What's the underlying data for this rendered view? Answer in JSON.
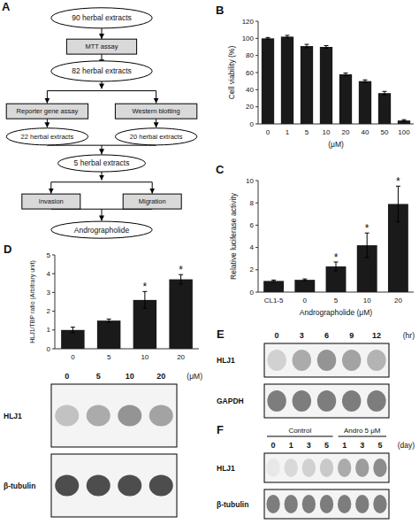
{
  "chart_data": [
    {
      "type": "flowchart",
      "title": "A",
      "annotations": [
        "90 herbal extracts",
        "MTT assay",
        "82 herbal extracts",
        "Reporter gene assay",
        "Western blotting",
        "22 herbal extracts",
        "20 herbal extracts",
        "5 herbal extracts",
        "Invasion",
        "Migration",
        "Andrographolide"
      ]
    },
    {
      "type": "bar",
      "title": "B",
      "categories": [
        "0",
        "1",
        "5",
        "10",
        "20",
        "40",
        "50",
        "100"
      ],
      "values": [
        100,
        102,
        91,
        90,
        58,
        50,
        36,
        4
      ],
      "errors": [
        1,
        1.5,
        2,
        1.5,
        1.5,
        1.5,
        2,
        1
      ],
      "ylabel": "Cell viability (%)",
      "xlabel": "(μM)",
      "ylim": [
        0,
        120
      ],
      "yticks": [
        0,
        20,
        40,
        60,
        80,
        100,
        120
      ],
      "color": "#1a1a1a"
    },
    {
      "type": "bar",
      "title": "C",
      "categories": [
        "CL1-5",
        "0",
        "5",
        "10",
        "20"
      ],
      "values": [
        1.0,
        1.1,
        2.3,
        4.2,
        7.9
      ],
      "errors": [
        0.08,
        0.08,
        0.4,
        1.1,
        1.6
      ],
      "annotations": [
        null,
        null,
        "*",
        "*",
        "*"
      ],
      "ylabel": "Relative luciferase activity",
      "xlabel": "Andrographolide (μM)",
      "ylim": [
        0,
        10
      ],
      "yticks": [
        0,
        2,
        4,
        6,
        8,
        10
      ],
      "color": "#1a1a1a"
    },
    {
      "type": "bar",
      "title": "D",
      "categories": [
        "0",
        "5",
        "10",
        "20"
      ],
      "values": [
        1.0,
        1.5,
        2.6,
        3.7
      ],
      "errors": [
        0.15,
        0.08,
        0.45,
        0.25
      ],
      "annotations": [
        null,
        null,
        "*",
        "*"
      ],
      "ylabel": "HLJ1/TBP ratio (Arbitrary unit)",
      "ylim": [
        0,
        5
      ],
      "yticks": [
        0,
        1,
        2,
        3,
        4,
        5
      ],
      "color": "#1a1a1a"
    },
    {
      "type": "blot",
      "lanes": [
        "0",
        "5",
        "10",
        "20"
      ],
      "unit": "(μM)",
      "rows": [
        {
          "name": "HLJ1",
          "values": [
            0.4,
            0.55,
            0.7,
            0.6
          ]
        },
        {
          "name": "β-tubulin"
        }
      ]
    },
    {
      "type": "blot",
      "title": "E",
      "lanes": [
        "0",
        "3",
        "6",
        "9",
        "12"
      ],
      "unit": "(hr)",
      "rows": [
        {
          "name": "HLJ1",
          "values": [
            0.3,
            0.55,
            0.7,
            0.6,
            0.5
          ]
        },
        {
          "name": "GAPDH",
          "values": [
            0.85,
            0.85,
            0.85,
            0.85,
            0.85
          ]
        }
      ]
    },
    {
      "type": "blot",
      "title": "F",
      "groups": [
        {
          "name": "Control",
          "lanes": [
            "0",
            "1",
            "3",
            "5"
          ]
        },
        {
          "name": "Andro 5 μM",
          "lanes": [
            "1",
            "3",
            "5"
          ]
        }
      ],
      "unit": "(day)",
      "rows": [
        {
          "name": "HLJ1",
          "values": [
            0.15,
            0.25,
            0.3,
            0.35,
            0.55,
            0.65,
            0.75
          ]
        },
        {
          "name": "β-tubulin",
          "values": [
            0.85,
            0.85,
            0.85,
            0.85,
            0.85,
            0.85,
            0.85
          ]
        }
      ]
    }
  ]
}
